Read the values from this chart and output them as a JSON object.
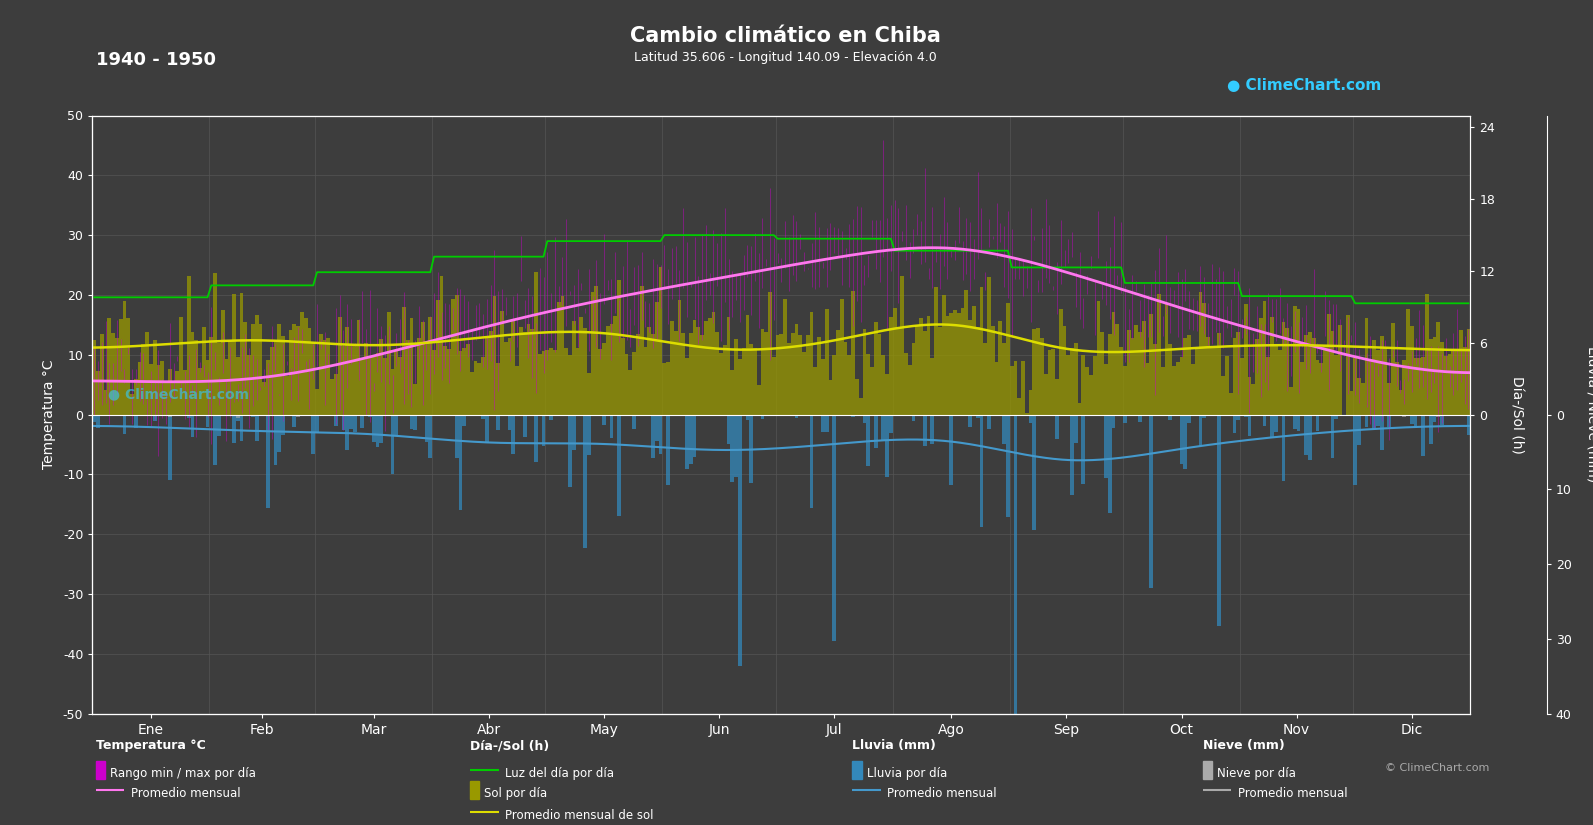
{
  "title": "Cambio climático en Chiba",
  "subtitle": "Latitud 35.606 - Longitud 140.09 - Elevación 4.0",
  "period": "1940 - 1950",
  "background_color": "#3d3d3d",
  "text_color": "#ffffff",
  "grid_color": "#555555",
  "months": [
    "Ene",
    "Feb",
    "Mar",
    "Abr",
    "May",
    "Jun",
    "Jul",
    "Ago",
    "Sep",
    "Oct",
    "Nov",
    "Dic"
  ],
  "temp_ylim": [
    -50,
    50
  ],
  "temp_yticks": [
    -50,
    -40,
    -30,
    -20,
    -10,
    0,
    10,
    20,
    30,
    40,
    50
  ],
  "sun_yticks_right": [
    0,
    6,
    12,
    18,
    24
  ],
  "rain_yticks_right": [
    0,
    10,
    20,
    30,
    40
  ],
  "temp_avg_monthly": [
    5.5,
    6.2,
    9.8,
    14.8,
    19.2,
    22.8,
    26.2,
    27.8,
    23.8,
    17.8,
    12.2,
    7.8
  ],
  "temp_max_monthly": [
    9.5,
    10.5,
    14.5,
    20.0,
    24.0,
    27.0,
    30.5,
    32.0,
    27.5,
    21.5,
    16.0,
    11.5
  ],
  "temp_min_monthly": [
    1.5,
    2.0,
    5.5,
    10.0,
    14.8,
    19.0,
    23.0,
    24.5,
    20.0,
    14.0,
    8.5,
    4.0
  ],
  "daylight_monthly": [
    9.8,
    10.8,
    11.9,
    13.2,
    14.5,
    15.0,
    14.7,
    13.7,
    12.3,
    11.0,
    9.9,
    9.3
  ],
  "sunshine_monthly": [
    5.8,
    6.2,
    5.8,
    6.5,
    6.8,
    5.5,
    6.2,
    7.5,
    5.5,
    5.5,
    5.8,
    5.5
  ],
  "rain_monthly_mm": [
    52,
    62,
    82,
    112,
    122,
    142,
    122,
    112,
    182,
    142,
    82,
    52
  ],
  "snow_monthly_mm": [
    5,
    5,
    2,
    0,
    0,
    0,
    0,
    0,
    0,
    0,
    0,
    3
  ],
  "days_per_month": [
    31,
    28,
    31,
    30,
    31,
    30,
    31,
    31,
    30,
    31,
    30,
    31
  ],
  "sun_scale": 2.0,
  "rain_scale": 1.25,
  "temp_color_avg": "#ff77ee",
  "temp_color_range": "#cc00cc",
  "daylight_color": "#00dd00",
  "sunshine_color": "#aaaa00",
  "sunshine_avg_color": "#dddd00",
  "rain_color": "#3388bb",
  "snow_color": "#aaaaaa",
  "rain_avg_color": "#4499cc",
  "clime_color": "#33ccff"
}
